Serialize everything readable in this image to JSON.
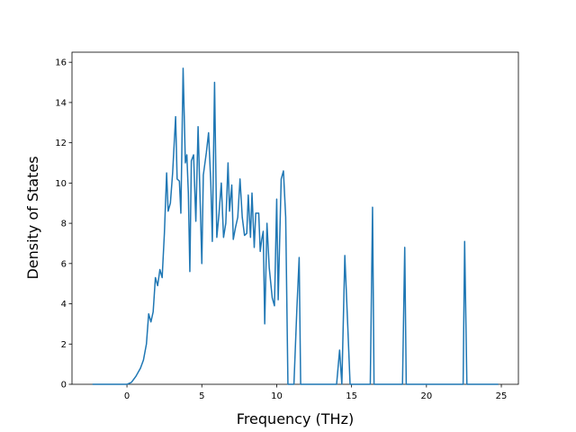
{
  "chart_data": {
    "type": "line",
    "x_label": "Frequency (THz)",
    "y_label": "Density of States",
    "xlim": [
      -3.67,
      26.14
    ],
    "ylim": [
      0,
      16.5
    ],
    "xticks": [
      0,
      5,
      10,
      15,
      20,
      25
    ],
    "yticks": [
      0,
      2,
      4,
      6,
      8,
      10,
      12,
      14,
      16
    ],
    "grid": false,
    "x": [
      -2.3,
      0,
      0.3,
      0.6,
      0.9,
      1.1,
      1.3,
      1.45,
      1.6,
      1.75,
      1.9,
      2.05,
      2.2,
      2.35,
      2.5,
      2.65,
      2.75,
      2.9,
      3.05,
      3.25,
      3.35,
      3.5,
      3.6,
      3.75,
      3.9,
      4.0,
      4.1,
      4.2,
      4.3,
      4.45,
      4.6,
      4.75,
      4.9,
      5.0,
      5.1,
      5.3,
      5.45,
      5.6,
      5.7,
      5.85,
      6.0,
      6.15,
      6.3,
      6.45,
      6.6,
      6.75,
      6.85,
      7.0,
      7.1,
      7.25,
      7.4,
      7.55,
      7.7,
      7.85,
      8.0,
      8.1,
      8.25,
      8.35,
      8.5,
      8.6,
      8.8,
      8.9,
      9.0,
      9.1,
      9.2,
      9.35,
      9.5,
      9.7,
      9.85,
      10.0,
      10.1,
      10.3,
      10.45,
      10.6,
      10.75,
      11.15,
      11.35,
      11.5,
      11.6,
      14.0,
      14.2,
      14.35,
      14.55,
      14.75,
      14.9,
      16.25,
      16.4,
      16.5,
      18.4,
      18.55,
      18.65,
      22.45,
      22.55,
      22.7,
      24.8
    ],
    "series": [
      {
        "name": "DOS",
        "color": "#1f77b4",
        "values": [
          0,
          0,
          0.1,
          0.4,
          0.8,
          1.2,
          2.0,
          3.5,
          3.1,
          3.6,
          5.3,
          4.9,
          5.7,
          5.3,
          7.5,
          10.5,
          8.6,
          9.0,
          10.5,
          13.3,
          10.2,
          10.1,
          8.5,
          15.7,
          11.0,
          11.4,
          9.5,
          5.6,
          11.1,
          11.4,
          8.1,
          12.8,
          8.8,
          6.0,
          10.4,
          11.5,
          12.5,
          10.0,
          7.1,
          15.0,
          7.3,
          8.5,
          10.0,
          7.3,
          8.0,
          11.0,
          8.6,
          9.9,
          7.2,
          7.8,
          8.3,
          10.2,
          8.3,
          7.4,
          7.5,
          9.4,
          7.3,
          9.5,
          6.8,
          8.5,
          8.5,
          6.6,
          7.2,
          7.6,
          3.0,
          8.0,
          5.8,
          4.3,
          3.9,
          9.2,
          4.2,
          10.2,
          10.6,
          8.3,
          0,
          0,
          3.8,
          6.3,
          0,
          0,
          1.7,
          0,
          6.4,
          2.8,
          0,
          0,
          8.8,
          0,
          0,
          6.8,
          0,
          0,
          7.1,
          0,
          0
        ]
      }
    ]
  }
}
